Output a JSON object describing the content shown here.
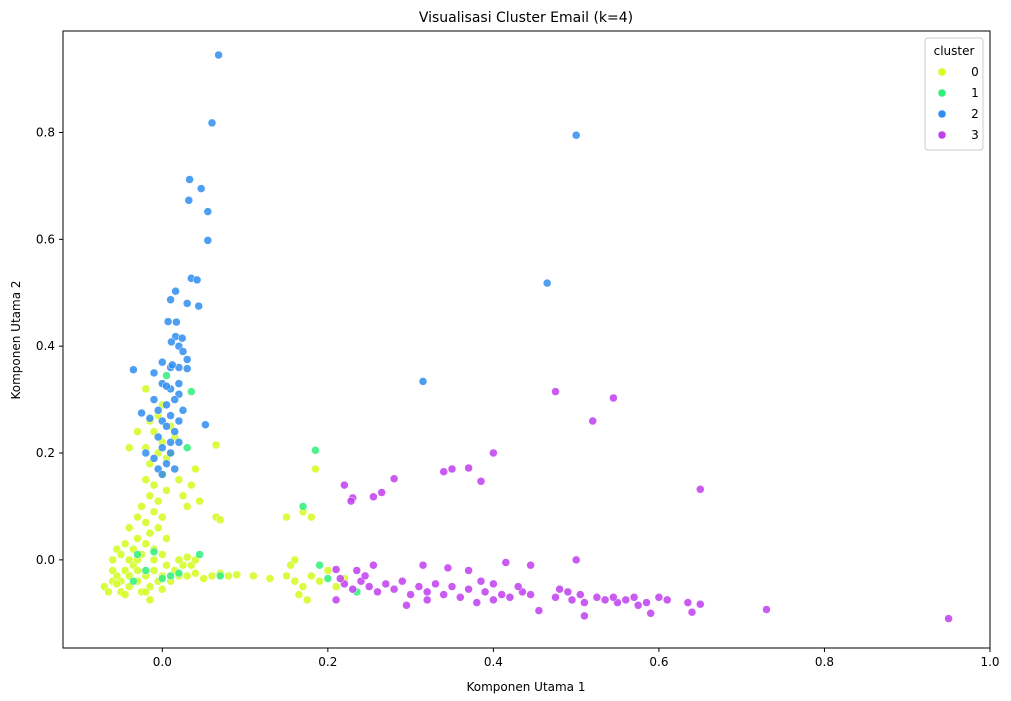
{
  "chart_data": {
    "type": "scatter",
    "title": "Visualisasi Cluster Email (k=4)",
    "xlabel": "Komponen Utama 1",
    "ylabel": "Komponen Utama 2",
    "xlim": [
      -0.12,
      1.0
    ],
    "ylim": [
      -0.165,
      0.99
    ],
    "x_ticks": [
      0.0,
      0.2,
      0.4,
      0.6,
      0.8,
      1.0
    ],
    "x_tick_labels": [
      "0.0",
      "0.2",
      "0.4",
      "0.6",
      "0.8",
      "1.0"
    ],
    "y_ticks": [
      0.0,
      0.2,
      0.4,
      0.6,
      0.8
    ],
    "y_tick_labels": [
      "0.0",
      "0.2",
      "0.4",
      "0.6",
      "0.8"
    ],
    "grid": false,
    "legend": {
      "title": "cluster",
      "placement": "top-right"
    },
    "series": [
      {
        "name": "0",
        "color": "#d4fc1c",
        "points": [
          [
            -0.07,
            -0.05
          ],
          [
            -0.065,
            -0.06
          ],
          [
            -0.06,
            -0.04
          ],
          [
            -0.055,
            -0.03
          ],
          [
            -0.05,
            -0.06
          ],
          [
            -0.045,
            -0.02
          ],
          [
            -0.04,
            -0.05
          ],
          [
            -0.035,
            -0.01
          ],
          [
            -0.03,
            -0.04
          ],
          [
            -0.025,
            -0.06
          ],
          [
            -0.02,
            -0.03
          ],
          [
            -0.015,
            -0.05
          ],
          [
            -0.01,
            -0.02
          ],
          [
            -0.005,
            -0.04
          ],
          [
            0.0,
            -0.03
          ],
          [
            0.005,
            -0.01
          ],
          [
            0.01,
            -0.04
          ],
          [
            0.015,
            -0.02
          ],
          [
            0.02,
            -0.03
          ],
          [
            0.025,
            -0.01
          ],
          [
            -0.06,
            0.0
          ],
          [
            -0.055,
            0.02
          ],
          [
            -0.05,
            0.01
          ],
          [
            -0.045,
            0.03
          ],
          [
            -0.04,
            0.0
          ],
          [
            -0.035,
            0.02
          ],
          [
            -0.03,
            0.04
          ],
          [
            -0.025,
            0.01
          ],
          [
            -0.02,
            0.03
          ],
          [
            -0.015,
            0.05
          ],
          [
            -0.01,
            0.02
          ],
          [
            -0.005,
            0.06
          ],
          [
            0.0,
            0.01
          ],
          [
            0.005,
            0.04
          ],
          [
            -0.04,
            0.06
          ],
          [
            -0.03,
            0.08
          ],
          [
            -0.02,
            0.07
          ],
          [
            -0.01,
            0.09
          ],
          [
            0.0,
            0.08
          ],
          [
            -0.025,
            0.1
          ],
          [
            -0.015,
            0.12
          ],
          [
            -0.005,
            0.11
          ],
          [
            0.005,
            0.13
          ],
          [
            -0.02,
            0.15
          ],
          [
            -0.01,
            0.14
          ],
          [
            0.0,
            0.16
          ],
          [
            -0.015,
            0.18
          ],
          [
            -0.005,
            0.2
          ],
          [
            0.0,
            0.22
          ],
          [
            -0.01,
            0.24
          ],
          [
            0.005,
            0.19
          ],
          [
            -0.02,
            0.21
          ],
          [
            0.01,
            0.25
          ],
          [
            -0.005,
            0.27
          ],
          [
            0.0,
            0.29
          ],
          [
            -0.02,
            0.32
          ],
          [
            -0.015,
            0.26
          ],
          [
            0.01,
            0.2
          ],
          [
            0.015,
            0.23
          ],
          [
            -0.03,
            0.24
          ],
          [
            -0.04,
            0.21
          ],
          [
            0.02,
            0.15
          ],
          [
            0.025,
            0.12
          ],
          [
            0.03,
            0.1
          ],
          [
            0.035,
            0.14
          ],
          [
            0.045,
            0.11
          ],
          [
            0.04,
            0.17
          ],
          [
            0.065,
            0.215
          ],
          [
            0.065,
            0.08
          ],
          [
            0.07,
            0.075
          ],
          [
            0.03,
            -0.03
          ],
          [
            0.04,
            -0.025
          ],
          [
            0.05,
            -0.035
          ],
          [
            0.06,
            -0.03
          ],
          [
            0.07,
            -0.025
          ],
          [
            0.08,
            -0.03
          ],
          [
            0.09,
            -0.028
          ],
          [
            0.11,
            -0.03
          ],
          [
            0.13,
            -0.035
          ],
          [
            0.15,
            -0.03
          ],
          [
            0.155,
            -0.01
          ],
          [
            0.16,
            -0.04
          ],
          [
            0.17,
            -0.05
          ],
          [
            0.175,
            -0.075
          ],
          [
            0.165,
            -0.065
          ],
          [
            0.18,
            -0.03
          ],
          [
            0.19,
            -0.04
          ],
          [
            0.2,
            -0.02
          ],
          [
            0.21,
            -0.05
          ],
          [
            0.22,
            -0.035
          ],
          [
            0.15,
            0.08
          ],
          [
            0.16,
            0.0
          ],
          [
            0.17,
            0.09
          ],
          [
            0.18,
            0.08
          ],
          [
            0.185,
            0.17
          ],
          [
            -0.06,
            -0.02
          ],
          [
            -0.05,
            -0.04
          ],
          [
            -0.04,
            -0.03
          ],
          [
            -0.03,
            -0.02
          ],
          [
            -0.02,
            -0.06
          ],
          [
            -0.015,
            -0.075
          ],
          [
            -0.03,
            0.0
          ],
          [
            -0.01,
            0.0
          ],
          [
            0.0,
            -0.055
          ],
          [
            0.02,
            0.0
          ],
          [
            0.03,
            0.005
          ],
          [
            0.035,
            -0.01
          ],
          [
            0.04,
            0.0
          ],
          [
            -0.045,
            -0.065
          ],
          [
            -0.055,
            -0.045
          ]
        ]
      },
      {
        "name": "1",
        "color": "#2ef07a",
        "points": [
          [
            -0.03,
            0.01
          ],
          [
            -0.02,
            -0.02
          ],
          [
            0.0,
            -0.035
          ],
          [
            0.01,
            -0.03
          ],
          [
            0.02,
            -0.025
          ],
          [
            -0.01,
            0.015
          ],
          [
            0.045,
            0.01
          ],
          [
            0.03,
            0.21
          ],
          [
            0.005,
            0.345
          ],
          [
            0.035,
            0.315
          ],
          [
            0.17,
            0.1
          ],
          [
            0.185,
            0.205
          ],
          [
            0.19,
            -0.01
          ],
          [
            0.2,
            -0.035
          ],
          [
            0.235,
            -0.06
          ],
          [
            -0.035,
            -0.04
          ],
          [
            0.07,
            -0.03
          ]
        ]
      },
      {
        "name": "2",
        "color": "#2f8df0",
        "points": [
          [
            0.068,
            0.945
          ],
          [
            0.06,
            0.818
          ],
          [
            0.5,
            0.795
          ],
          [
            0.033,
            0.712
          ],
          [
            0.047,
            0.695
          ],
          [
            0.032,
            0.673
          ],
          [
            0.055,
            0.652
          ],
          [
            0.055,
            0.598
          ],
          [
            0.035,
            0.527
          ],
          [
            0.042,
            0.524
          ],
          [
            0.465,
            0.518
          ],
          [
            0.016,
            0.503
          ],
          [
            0.01,
            0.487
          ],
          [
            0.03,
            0.48
          ],
          [
            0.044,
            0.475
          ],
          [
            0.007,
            0.446
          ],
          [
            0.017,
            0.445
          ],
          [
            0.016,
            0.418
          ],
          [
            0.024,
            0.415
          ],
          [
            0.011,
            0.408
          ],
          [
            0.02,
            0.4
          ],
          [
            0.025,
            0.39
          ],
          [
            0.03,
            0.375
          ],
          [
            0.0,
            0.37
          ],
          [
            0.01,
            0.36
          ],
          [
            0.02,
            0.36
          ],
          [
            0.03,
            0.358
          ],
          [
            -0.035,
            0.356
          ],
          [
            0.315,
            0.334
          ],
          [
            -0.01,
            0.35
          ],
          [
            0.0,
            0.33
          ],
          [
            0.01,
            0.32
          ],
          [
            0.02,
            0.31
          ],
          [
            0.015,
            0.3
          ],
          [
            0.005,
            0.29
          ],
          [
            -0.005,
            0.28
          ],
          [
            0.025,
            0.28
          ],
          [
            0.01,
            0.27
          ],
          [
            -0.015,
            0.265
          ],
          [
            0.0,
            0.26
          ],
          [
            0.02,
            0.26
          ],
          [
            0.052,
            0.253
          ],
          [
            0.005,
            0.25
          ],
          [
            0.015,
            0.24
          ],
          [
            -0.005,
            0.23
          ],
          [
            0.01,
            0.22
          ],
          [
            0.02,
            0.22
          ],
          [
            0.0,
            0.21
          ],
          [
            0.01,
            0.2
          ],
          [
            -0.01,
            0.19
          ],
          [
            0.005,
            0.18
          ],
          [
            0.015,
            0.17
          ],
          [
            -0.005,
            0.17
          ],
          [
            0.0,
            0.16
          ],
          [
            -0.02,
            0.2
          ],
          [
            -0.025,
            0.275
          ],
          [
            0.005,
            0.325
          ],
          [
            0.02,
            0.33
          ],
          [
            -0.01,
            0.3
          ],
          [
            0.012,
            0.365
          ]
        ]
      },
      {
        "name": "3",
        "color": "#c13ef0",
        "points": [
          [
            0.95,
            -0.11
          ],
          [
            0.73,
            -0.093
          ],
          [
            0.65,
            -0.083
          ],
          [
            0.64,
            -0.098
          ],
          [
            0.635,
            -0.08
          ],
          [
            0.61,
            -0.075
          ],
          [
            0.6,
            -0.07
          ],
          [
            0.59,
            -0.1
          ],
          [
            0.585,
            -0.08
          ],
          [
            0.575,
            -0.085
          ],
          [
            0.57,
            -0.07
          ],
          [
            0.56,
            -0.075
          ],
          [
            0.55,
            -0.08
          ],
          [
            0.545,
            -0.07
          ],
          [
            0.535,
            -0.075
          ],
          [
            0.525,
            -0.07
          ],
          [
            0.51,
            -0.08
          ],
          [
            0.505,
            -0.065
          ],
          [
            0.495,
            -0.075
          ],
          [
            0.49,
            -0.06
          ],
          [
            0.48,
            -0.055
          ],
          [
            0.475,
            -0.07
          ],
          [
            0.455,
            -0.095
          ],
          [
            0.445,
            -0.065
          ],
          [
            0.435,
            -0.06
          ],
          [
            0.42,
            -0.07
          ],
          [
            0.41,
            -0.065
          ],
          [
            0.4,
            -0.075
          ],
          [
            0.39,
            -0.06
          ],
          [
            0.38,
            -0.08
          ],
          [
            0.37,
            -0.055
          ],
          [
            0.36,
            -0.07
          ],
          [
            0.35,
            -0.05
          ],
          [
            0.34,
            -0.065
          ],
          [
            0.33,
            -0.045
          ],
          [
            0.32,
            -0.06
          ],
          [
            0.31,
            -0.05
          ],
          [
            0.3,
            -0.065
          ],
          [
            0.295,
            -0.085
          ],
          [
            0.28,
            -0.055
          ],
          [
            0.27,
            -0.045
          ],
          [
            0.26,
            -0.06
          ],
          [
            0.25,
            -0.05
          ],
          [
            0.24,
            -0.04
          ],
          [
            0.23,
            -0.055
          ],
          [
            0.22,
            -0.045
          ],
          [
            0.215,
            -0.035
          ],
          [
            0.21,
            -0.075
          ],
          [
            0.235,
            -0.02
          ],
          [
            0.255,
            -0.01
          ],
          [
            0.29,
            -0.04
          ],
          [
            0.315,
            -0.01
          ],
          [
            0.345,
            -0.015
          ],
          [
            0.37,
            -0.02
          ],
          [
            0.4,
            -0.045
          ],
          [
            0.415,
            -0.005
          ],
          [
            0.445,
            -0.01
          ],
          [
            0.5,
            0.0
          ],
          [
            0.51,
            -0.105
          ],
          [
            0.35,
            0.17
          ],
          [
            0.34,
            0.165
          ],
          [
            0.37,
            0.172
          ],
          [
            0.385,
            0.147
          ],
          [
            0.4,
            0.2
          ],
          [
            0.28,
            0.152
          ],
          [
            0.265,
            0.126
          ],
          [
            0.255,
            0.118
          ],
          [
            0.23,
            0.116
          ],
          [
            0.228,
            0.11
          ],
          [
            0.22,
            0.14
          ],
          [
            0.475,
            0.315
          ],
          [
            0.545,
            0.303
          ],
          [
            0.52,
            0.26
          ],
          [
            0.65,
            0.132
          ],
          [
            0.21,
            -0.018
          ],
          [
            0.245,
            -0.03
          ],
          [
            0.32,
            -0.075
          ],
          [
            0.385,
            -0.04
          ],
          [
            0.43,
            -0.05
          ]
        ]
      }
    ]
  }
}
